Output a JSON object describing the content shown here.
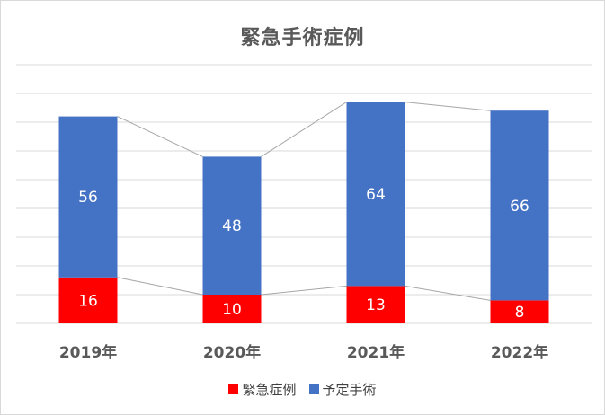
{
  "chart_data": {
    "type": "bar",
    "stacked": true,
    "title": "緊急手術症例",
    "categories": [
      "2019年",
      "2020年",
      "2021年",
      "2022年"
    ],
    "series": [
      {
        "name": "緊急症例",
        "values": [
          16,
          10,
          13,
          8
        ],
        "color": "#ff0000"
      },
      {
        "name": "予定手術",
        "values": [
          56,
          48,
          64,
          66
        ],
        "color": "#4472c4"
      }
    ],
    "ylim": [
      0,
      90
    ],
    "grid": true,
    "series_lines": true,
    "legend": "bottom",
    "data_labels": true
  }
}
